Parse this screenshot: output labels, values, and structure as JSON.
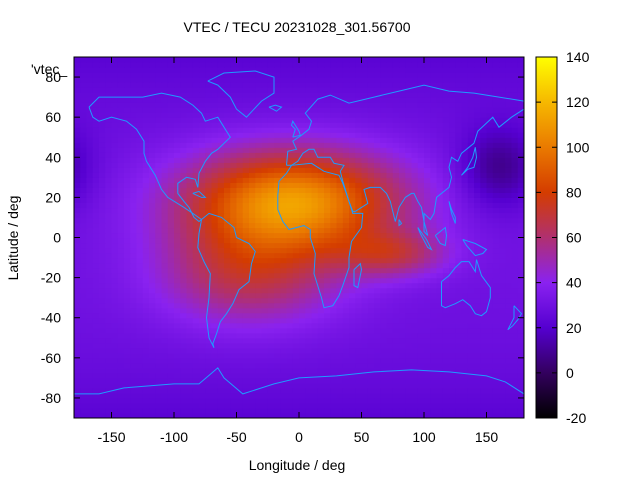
{
  "chart_data": {
    "type": "heatmap",
    "title": "VTEC / TECU 20231028_301.56700",
    "xlabel": "Longitude / deg",
    "ylabel": "Latitude / deg",
    "xlim": [
      -180,
      180
    ],
    "ylim": [
      -90,
      90
    ],
    "xticks": [
      -150,
      -100,
      -50,
      0,
      50,
      100,
      150
    ],
    "yticks": [
      -80,
      -60,
      -40,
      -20,
      0,
      20,
      40,
      60,
      80
    ],
    "xtick_labels": [
      "-150",
      "-100",
      "-50",
      "0",
      "50",
      "100",
      "150"
    ],
    "ytick_labels": [
      "-80",
      "-60",
      "-40",
      "-20",
      "0",
      "20",
      "40",
      "60",
      "80"
    ],
    "colorbar": {
      "min": -20,
      "max": 140,
      "ticks": [
        -20,
        0,
        20,
        40,
        60,
        80,
        100,
        120,
        140
      ],
      "tick_labels": [
        "-20",
        "0",
        "20",
        "40",
        "60",
        "80",
        "100",
        "120",
        "140"
      ]
    },
    "legend_label": "'vtec_",
    "grid": false,
    "background_level": 30,
    "features": [
      {
        "name": "subsolar-maximum",
        "lon": -5,
        "lat": 18,
        "lon_sigma": 60,
        "lat_sigma": 18,
        "amp": 80
      },
      {
        "name": "southern-crest",
        "lon": -40,
        "lat": -18,
        "lon_sigma": 50,
        "lat_sigma": 18,
        "amp": 35
      },
      {
        "name": "indian-ocean-tongue",
        "lon": 75,
        "lat": -8,
        "lon_sigma": 30,
        "lat_sigma": 8,
        "amp": 30
      },
      {
        "name": "asia-night-trough",
        "lon": 160,
        "lat": 35,
        "lon_sigma": 22,
        "lat_sigma": 14,
        "amp": -22
      }
    ],
    "coastlines": [
      {
        "name": "north-america",
        "points": [
          [
            -168,
            65
          ],
          [
            -160,
            70
          ],
          [
            -140,
            70
          ],
          [
            -125,
            70
          ],
          [
            -110,
            72
          ],
          [
            -95,
            70
          ],
          [
            -85,
            66
          ],
          [
            -78,
            62
          ],
          [
            -75,
            58
          ],
          [
            -65,
            60
          ],
          [
            -60,
            55
          ],
          [
            -55,
            50
          ],
          [
            -65,
            44
          ],
          [
            -70,
            42
          ],
          [
            -75,
            38
          ],
          [
            -80,
            32
          ],
          [
            -81,
            25
          ],
          [
            -83,
            29
          ],
          [
            -90,
            30
          ],
          [
            -97,
            27
          ],
          [
            -97,
            22
          ],
          [
            -92,
            18
          ],
          [
            -88,
            15
          ],
          [
            -84,
            10
          ],
          [
            -80,
            8
          ],
          [
            -78,
            9
          ],
          [
            -85,
            12
          ],
          [
            -92,
            15
          ],
          [
            -105,
            20
          ],
          [
            -110,
            24
          ],
          [
            -115,
            31
          ],
          [
            -118,
            34
          ],
          [
            -122,
            38
          ],
          [
            -124,
            42
          ],
          [
            -124,
            48
          ],
          [
            -130,
            54
          ],
          [
            -138,
            58
          ],
          [
            -150,
            60
          ],
          [
            -160,
            58
          ],
          [
            -165,
            60
          ],
          [
            -168,
            65
          ]
        ]
      },
      {
        "name": "south-america",
        "points": [
          [
            -78,
            9
          ],
          [
            -72,
            12
          ],
          [
            -62,
            10
          ],
          [
            -52,
            5
          ],
          [
            -50,
            0
          ],
          [
            -40,
            -3
          ],
          [
            -35,
            -7
          ],
          [
            -38,
            -13
          ],
          [
            -40,
            -22
          ],
          [
            -48,
            -26
          ],
          [
            -53,
            -33
          ],
          [
            -58,
            -38
          ],
          [
            -63,
            -42
          ],
          [
            -66,
            -48
          ],
          [
            -69,
            -53
          ],
          [
            -68,
            -55
          ],
          [
            -72,
            -50
          ],
          [
            -74,
            -40
          ],
          [
            -72,
            -30
          ],
          [
            -71,
            -18
          ],
          [
            -76,
            -12
          ],
          [
            -81,
            -5
          ],
          [
            -80,
            2
          ],
          [
            -78,
            9
          ]
        ]
      },
      {
        "name": "africa",
        "points": [
          [
            -17,
            21
          ],
          [
            -16,
            28
          ],
          [
            -10,
            32
          ],
          [
            -6,
            36
          ],
          [
            10,
            37
          ],
          [
            20,
            33
          ],
          [
            32,
            31
          ],
          [
            35,
            27
          ],
          [
            40,
            18
          ],
          [
            43,
            12
          ],
          [
            51,
            12
          ],
          [
            50,
            5
          ],
          [
            42,
            -2
          ],
          [
            40,
            -10
          ],
          [
            40,
            -15
          ],
          [
            35,
            -24
          ],
          [
            32,
            -29
          ],
          [
            27,
            -34
          ],
          [
            20,
            -35
          ],
          [
            18,
            -30
          ],
          [
            12,
            -18
          ],
          [
            13,
            -8
          ],
          [
            9,
            0
          ],
          [
            9,
            4
          ],
          [
            4,
            6
          ],
          [
            -8,
            4
          ],
          [
            -13,
            8
          ],
          [
            -17,
            14
          ],
          [
            -17,
            21
          ]
        ]
      },
      {
        "name": "eurasia",
        "points": [
          [
            -10,
            36
          ],
          [
            -9,
            43
          ],
          [
            -2,
            44
          ],
          [
            -5,
            48
          ],
          [
            2,
            51
          ],
          [
            8,
            54
          ],
          [
            10,
            58
          ],
          [
            5,
            62
          ],
          [
            15,
            69
          ],
          [
            25,
            71
          ],
          [
            40,
            67
          ],
          [
            60,
            70
          ],
          [
            80,
            73
          ],
          [
            100,
            76
          ],
          [
            120,
            73
          ],
          [
            140,
            72
          ],
          [
            160,
            70
          ],
          [
            180,
            68
          ],
          [
            180,
            64
          ],
          [
            170,
            60
          ],
          [
            160,
            55
          ],
          [
            155,
            60
          ],
          [
            143,
            53
          ],
          [
            140,
            47
          ],
          [
            130,
            42
          ],
          [
            127,
            38
          ],
          [
            122,
            40
          ],
          [
            120,
            35
          ],
          [
            122,
            30
          ],
          [
            120,
            25
          ],
          [
            110,
            20
          ],
          [
            108,
            12
          ],
          [
            105,
            9
          ],
          [
            100,
            12
          ],
          [
            100,
            3
          ],
          [
            103,
            1
          ],
          [
            100,
            8
          ],
          [
            98,
            15
          ],
          [
            95,
            18
          ],
          [
            92,
            22
          ],
          [
            90,
            22
          ],
          [
            85,
            20
          ],
          [
            80,
            15
          ],
          [
            77,
            8
          ],
          [
            73,
            18
          ],
          [
            70,
            22
          ],
          [
            65,
            25
          ],
          [
            57,
            25
          ],
          [
            52,
            24
          ],
          [
            55,
            17
          ],
          [
            50,
            15
          ],
          [
            45,
            13
          ],
          [
            43,
            13
          ],
          [
            40,
            18
          ],
          [
            35,
            28
          ],
          [
            33,
            33
          ],
          [
            36,
            36
          ],
          [
            28,
            37
          ],
          [
            25,
            40
          ],
          [
            20,
            40
          ],
          [
            15,
            40
          ],
          [
            12,
            44
          ],
          [
            8,
            44
          ],
          [
            3,
            42
          ],
          [
            -1,
            38
          ],
          [
            -6,
            36
          ],
          [
            -10,
            36
          ]
        ]
      },
      {
        "name": "australia",
        "points": [
          [
            114,
            -22
          ],
          [
            114,
            -34
          ],
          [
            117,
            -35
          ],
          [
            125,
            -33
          ],
          [
            131,
            -31
          ],
          [
            137,
            -34
          ],
          [
            141,
            -38
          ],
          [
            146,
            -39
          ],
          [
            150,
            -37
          ],
          [
            153,
            -30
          ],
          [
            153,
            -25
          ],
          [
            146,
            -19
          ],
          [
            142,
            -11
          ],
          [
            141,
            -17
          ],
          [
            136,
            -12
          ],
          [
            130,
            -12
          ],
          [
            125,
            -15
          ],
          [
            120,
            -19
          ],
          [
            114,
            -22
          ]
        ]
      },
      {
        "name": "greenland",
        "points": [
          [
            -73,
            78
          ],
          [
            -60,
            82
          ],
          [
            -35,
            83
          ],
          [
            -20,
            80
          ],
          [
            -20,
            72
          ],
          [
            -30,
            68
          ],
          [
            -42,
            60
          ],
          [
            -50,
            64
          ],
          [
            -55,
            70
          ],
          [
            -65,
            76
          ],
          [
            -73,
            78
          ]
        ]
      },
      {
        "name": "antarctica",
        "points": [
          [
            -180,
            -78
          ],
          [
            -160,
            -78
          ],
          [
            -140,
            -75
          ],
          [
            -120,
            -74
          ],
          [
            -100,
            -73
          ],
          [
            -80,
            -73
          ],
          [
            -65,
            -65
          ],
          [
            -60,
            -70
          ],
          [
            -45,
            -78
          ],
          [
            -20,
            -73
          ],
          [
            0,
            -70
          ],
          [
            30,
            -69
          ],
          [
            60,
            -67
          ],
          [
            90,
            -66
          ],
          [
            120,
            -67
          ],
          [
            150,
            -69
          ],
          [
            165,
            -72
          ],
          [
            180,
            -78
          ]
        ]
      },
      {
        "name": "madagascar",
        "points": [
          [
            44,
            -16
          ],
          [
            49,
            -13
          ],
          [
            50,
            -16
          ],
          [
            47,
            -25
          ],
          [
            44,
            -24
          ],
          [
            44,
            -16
          ]
        ]
      },
      {
        "name": "great-britain",
        "points": [
          [
            -5,
            50
          ],
          [
            1,
            51
          ],
          [
            0,
            53
          ],
          [
            -3,
            56
          ],
          [
            -5,
            58
          ],
          [
            -6,
            56
          ],
          [
            -3,
            54
          ],
          [
            -5,
            50
          ]
        ]
      },
      {
        "name": "japan",
        "points": [
          [
            130,
            31
          ],
          [
            135,
            34
          ],
          [
            140,
            35
          ],
          [
            142,
            40
          ],
          [
            141,
            45
          ],
          [
            139,
            40
          ],
          [
            135,
            35
          ],
          [
            130,
            31
          ]
        ]
      },
      {
        "name": "new-zealand",
        "points": [
          [
            172,
            -34
          ],
          [
            178,
            -38
          ],
          [
            175,
            -41
          ],
          [
            171,
            -44
          ],
          [
            167,
            -46
          ],
          [
            172,
            -40
          ],
          [
            172,
            -34
          ]
        ]
      },
      {
        "name": "borneo",
        "points": [
          [
            109,
            1
          ],
          [
            113,
            -3
          ],
          [
            117,
            -4
          ],
          [
            118,
            1
          ],
          [
            117,
            5
          ],
          [
            113,
            3
          ],
          [
            109,
            1
          ]
        ]
      },
      {
        "name": "sumatra",
        "points": [
          [
            95,
            5
          ],
          [
            102,
            -1
          ],
          [
            106,
            -6
          ],
          [
            103,
            -5
          ],
          [
            97,
            2
          ],
          [
            95,
            5
          ]
        ]
      },
      {
        "name": "new-guinea",
        "points": [
          [
            131,
            -1
          ],
          [
            141,
            -3
          ],
          [
            150,
            -6
          ],
          [
            147,
            -8
          ],
          [
            141,
            -9
          ],
          [
            134,
            -4
          ],
          [
            131,
            -1
          ]
        ]
      },
      {
        "name": "iceland",
        "points": [
          [
            -24,
            65
          ],
          [
            -19,
            66
          ],
          [
            -14,
            65
          ],
          [
            -18,
            63
          ],
          [
            -24,
            65
          ]
        ]
      },
      {
        "name": "cuba",
        "points": [
          [
            -85,
            22
          ],
          [
            -80,
            23
          ],
          [
            -75,
            20
          ],
          [
            -78,
            20
          ],
          [
            -85,
            22
          ]
        ]
      },
      {
        "name": "sri-lanka",
        "points": [
          [
            80,
            9
          ],
          [
            82,
            7
          ],
          [
            80,
            6
          ],
          [
            80,
            9
          ]
        ]
      },
      {
        "name": "philippines",
        "points": [
          [
            120,
            18
          ],
          [
            122,
            14
          ],
          [
            125,
            10
          ],
          [
            125,
            7
          ],
          [
            122,
            12
          ],
          [
            120,
            18
          ]
        ]
      }
    ]
  }
}
